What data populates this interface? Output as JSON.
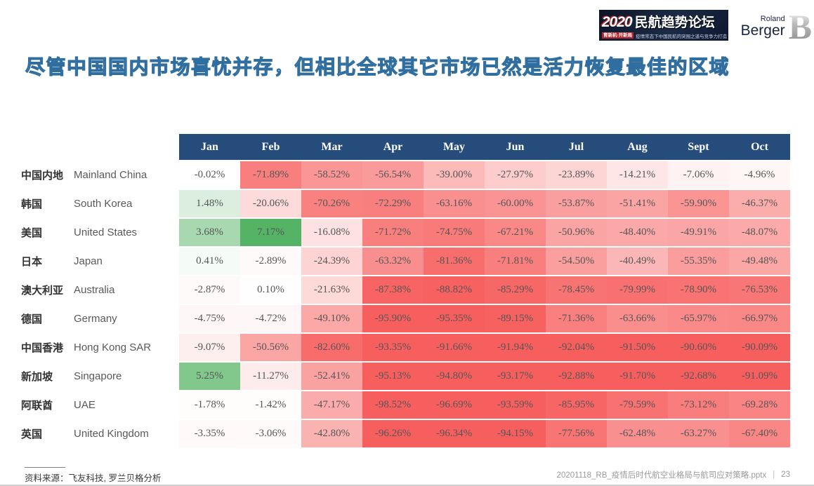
{
  "slide": {
    "title": "尽管中国国内市场喜忧并存，但相比全球其它市场已然是活力恢复最佳的区域"
  },
  "banner": {
    "year": "2020",
    "title": "民航趋势论坛",
    "tagline_highlight": "育新机·开新局",
    "tagline_rest": "疫情常态下中国民航的突围之道与竞争力打造"
  },
  "logo": {
    "line1": "Roland",
    "line2": "Berger",
    "mark": "B"
  },
  "footer": {
    "source": "资料来源：飞友科技, 罗兰贝格分析",
    "file_name": "20201118_RB_疫情后时代航空业格局与航司应对策略.pptx",
    "separator": "|",
    "page_number": "23"
  },
  "chart_data": {
    "type": "heatmap",
    "title": "尽管中国国内市场喜忧并存，但相比全球其它市场已然是活力恢复最佳的区域",
    "unit": "%",
    "value_note": "YoY change shown as percentages, green = positive, red = negative",
    "columns": [
      "Jan",
      "Feb",
      "Mar",
      "Apr",
      "May",
      "Jun",
      "Jul",
      "Aug",
      "Sept",
      "Oct"
    ],
    "rows": [
      {
        "label_zh": "中国内地",
        "label_en": "Mainland China",
        "values": [
          -0.02,
          -71.89,
          -58.52,
          -56.54,
          -39.0,
          -27.97,
          -23.89,
          -14.21,
          -7.06,
          -4.96
        ]
      },
      {
        "label_zh": "韩国",
        "label_en": "South Korea",
        "values": [
          1.48,
          -20.06,
          -70.26,
          -72.29,
          -63.16,
          -60.0,
          -53.87,
          -51.41,
          -59.9,
          -46.37
        ]
      },
      {
        "label_zh": "美国",
        "label_en": "United States",
        "values": [
          3.68,
          7.17,
          -16.08,
          -71.72,
          -74.75,
          -67.21,
          -50.96,
          -48.4,
          -49.91,
          -48.07
        ]
      },
      {
        "label_zh": "日本",
        "label_en": "Japan",
        "values": [
          0.41,
          -2.89,
          -24.39,
          -63.32,
          -81.36,
          -71.81,
          -54.5,
          -40.49,
          -55.35,
          -49.48
        ]
      },
      {
        "label_zh": "澳大利亚",
        "label_en": "Australia",
        "values": [
          -2.87,
          0.1,
          -21.63,
          -87.38,
          -88.82,
          -85.29,
          -78.45,
          -79.99,
          -78.9,
          -76.53
        ]
      },
      {
        "label_zh": "德国",
        "label_en": "Germany",
        "values": [
          -4.75,
          -4.72,
          -49.1,
          -95.9,
          -95.35,
          -89.15,
          -71.36,
          -63.66,
          -65.97,
          -66.97
        ]
      },
      {
        "label_zh": "中国香港",
        "label_en": "Hong Kong SAR",
        "values": [
          -9.07,
          -50.56,
          -82.6,
          -93.35,
          -91.66,
          -91.94,
          -92.04,
          -91.5,
          -90.6,
          -90.09
        ]
      },
      {
        "label_zh": "新加坡",
        "label_en": "Singapore",
        "values": [
          5.25,
          -11.27,
          -52.41,
          -95.13,
          -94.8,
          -93.17,
          -92.88,
          -91.7,
          -92.68,
          -91.09
        ]
      },
      {
        "label_zh": "阿联酋",
        "label_en": "UAE",
        "values": [
          -1.78,
          -1.42,
          -47.17,
          -98.52,
          -96.69,
          -93.59,
          -85.95,
          -79.59,
          -73.12,
          -69.28
        ]
      },
      {
        "label_zh": "英国",
        "label_en": "United Kingdom",
        "values": [
          -3.35,
          -3.06,
          -42.8,
          -96.26,
          -96.34,
          -94.15,
          -77.56,
          -62.48,
          -63.27,
          -67.4
        ]
      }
    ],
    "layout": {
      "legend": false,
      "grid": false
    },
    "colors": {
      "header_bg": "#264c7c",
      "header_text": "#ffffff",
      "zero_color": "#ffffff",
      "positive_max_color": "#53b363",
      "negative_max_color": "#f75f5e",
      "positive_domain_max": 7.2,
      "negative_domain_min": -90,
      "cell_text": "#565656"
    }
  }
}
